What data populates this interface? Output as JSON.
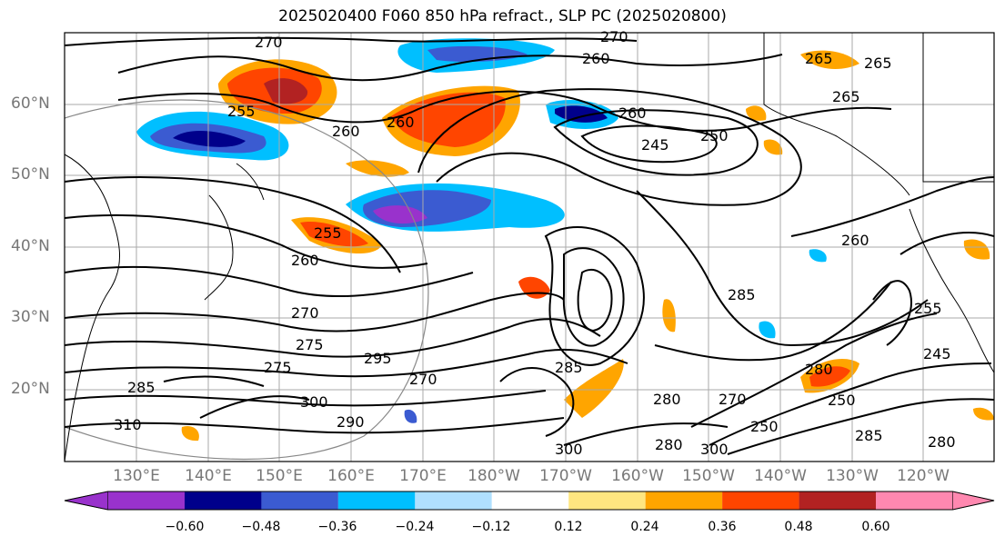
{
  "title": "2025020400 F060 850 hPa refract., SLP PC (2025020800)",
  "lat_labels": [
    {
      "text": "60°N"
    },
    {
      "text": "50°N"
    },
    {
      "text": "40°N"
    },
    {
      "text": "30°N"
    },
    {
      "text": "20°N"
    }
  ],
  "lon_labels": [
    {
      "text": "130°E"
    },
    {
      "text": "140°E"
    },
    {
      "text": "150°E"
    },
    {
      "text": "160°E"
    },
    {
      "text": "170°E"
    },
    {
      "text": "180°W"
    },
    {
      "text": "170°W"
    },
    {
      "text": "160°W"
    },
    {
      "text": "150°W"
    },
    {
      "text": "140°W"
    },
    {
      "text": "130°W"
    },
    {
      "text": "120°W"
    }
  ],
  "colorbar": {
    "colors": [
      "#9932cc",
      "#00008b",
      "#3b5bd1",
      "#00bfff",
      "#b0e0ff",
      "#ffffff",
      "#ffe680",
      "#ffa500",
      "#ff4500",
      "#b22222",
      "#ff88b0"
    ],
    "ticks": [
      "−0.60",
      "−0.48",
      "−0.36",
      "−0.24",
      "−0.12",
      "0.12",
      "0.24",
      "0.36",
      "0.48",
      "0.60"
    ]
  },
  "contour_labels": [
    "270",
    "270",
    "260",
    "265",
    "265",
    "265",
    "255",
    "260",
    "260",
    "245",
    "250",
    "260",
    "260",
    "260",
    "255",
    "255",
    "270",
    "275",
    "275",
    "295",
    "285",
    "270",
    "300",
    "290",
    "310",
    "285",
    "280",
    "270",
    "280",
    "250",
    "300",
    "250",
    "285",
    "280",
    "245",
    "285",
    "280",
    "300"
  ]
}
